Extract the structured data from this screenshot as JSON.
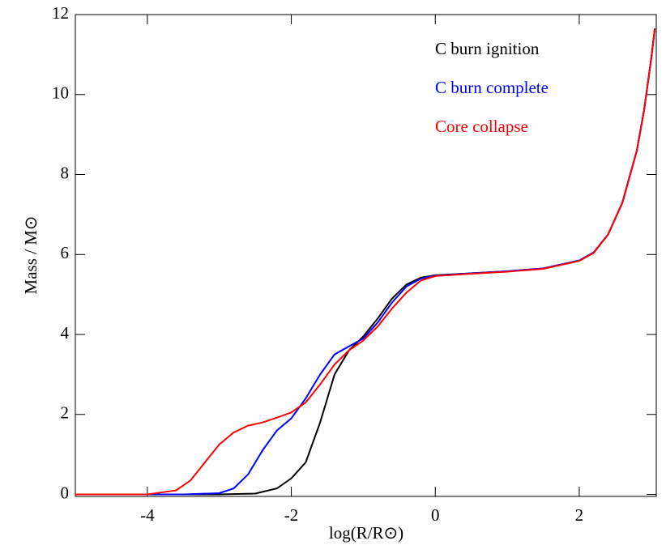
{
  "chart_data": {
    "type": "line",
    "xlabel": "log(R/R⊙)",
    "ylabel": "Mass / M⊙",
    "xlim": [
      -5,
      3.07
    ],
    "ylim": [
      -0.05,
      12.0
    ],
    "xticks": [
      -4,
      -2,
      0,
      2
    ],
    "yticks": [
      0,
      2,
      4,
      6,
      8,
      10,
      12
    ],
    "series": [
      {
        "name": "C burn ignition",
        "color": "#000000",
        "x": [
          -5,
          -3,
          -2.5,
          -2.2,
          -2,
          -1.8,
          -1.6,
          -1.4,
          -1.2,
          -1,
          -0.8,
          -0.6,
          -0.4,
          -0.2,
          0,
          0.5,
          1,
          1.5,
          2,
          2.2,
          2.4,
          2.6,
          2.8,
          2.9,
          3,
          3.05
        ],
        "values": [
          0,
          0,
          0.02,
          0.15,
          0.4,
          0.8,
          1.8,
          3.0,
          3.6,
          3.95,
          4.4,
          4.9,
          5.25,
          5.42,
          5.48,
          5.53,
          5.58,
          5.65,
          5.85,
          6.05,
          6.5,
          7.3,
          8.6,
          9.6,
          10.9,
          11.65
        ]
      },
      {
        "name": "C burn complete",
        "color": "#0000ff",
        "x": [
          -5,
          -3.5,
          -3,
          -2.8,
          -2.6,
          -2.4,
          -2.2,
          -2,
          -1.8,
          -1.6,
          -1.4,
          -1.2,
          -1,
          -0.8,
          -0.6,
          -0.4,
          -0.2,
          0,
          0.5,
          1,
          1.5,
          2,
          2.2,
          2.4,
          2.6,
          2.8,
          2.9,
          3,
          3.05
        ],
        "values": [
          0,
          0,
          0.03,
          0.15,
          0.5,
          1.1,
          1.6,
          1.9,
          2.4,
          3.0,
          3.5,
          3.7,
          3.9,
          4.3,
          4.8,
          5.2,
          5.4,
          5.47,
          5.53,
          5.58,
          5.65,
          5.85,
          6.05,
          6.5,
          7.3,
          8.6,
          9.6,
          10.9,
          11.65
        ]
      },
      {
        "name": "Core collapse",
        "color": "#ff0000",
        "x": [
          -5,
          -4,
          -3.6,
          -3.4,
          -3.2,
          -3,
          -2.8,
          -2.6,
          -2.4,
          -2.2,
          -2,
          -1.8,
          -1.6,
          -1.4,
          -1.2,
          -1,
          -0.8,
          -0.6,
          -0.4,
          -0.2,
          0,
          0.5,
          1,
          1.5,
          2,
          2.2,
          2.4,
          2.6,
          2.8,
          2.9,
          3,
          3.05
        ],
        "values": [
          0,
          0,
          0.1,
          0.35,
          0.8,
          1.25,
          1.55,
          1.72,
          1.8,
          1.92,
          2.05,
          2.3,
          2.75,
          3.25,
          3.6,
          3.85,
          4.2,
          4.65,
          5.05,
          5.35,
          5.46,
          5.52,
          5.57,
          5.64,
          5.84,
          6.04,
          6.5,
          7.3,
          8.6,
          9.6,
          10.9,
          11.65
        ]
      }
    ]
  }
}
